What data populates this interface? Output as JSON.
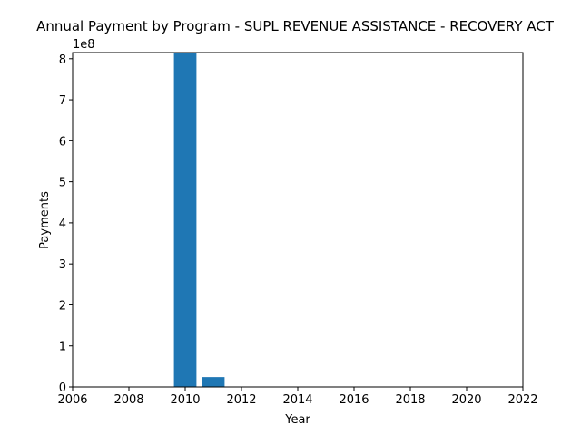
{
  "chart_data": {
    "type": "bar",
    "title": "Annual Payment by Program - SUPL REVENUE ASSISTANCE - RECOVERY ACT",
    "xlabel": "Year",
    "ylabel": "Payments",
    "y_offset_text": "1e8",
    "x": [
      2010,
      2011
    ],
    "values": [
      815000000,
      24000000
    ],
    "bar_width_years": 0.8,
    "xlim": [
      2006,
      2022
    ],
    "ylim": [
      0,
      815000000
    ],
    "x_ticks": [
      2006,
      2008,
      2010,
      2012,
      2014,
      2016,
      2018,
      2020,
      2022
    ],
    "x_tick_labels": [
      "2006",
      "2008",
      "2010",
      "2012",
      "2014",
      "2016",
      "2018",
      "2020",
      "2022"
    ],
    "y_ticks": [
      0,
      100000000,
      200000000,
      300000000,
      400000000,
      500000000,
      600000000,
      700000000,
      800000000
    ],
    "y_tick_labels": [
      "0",
      "1",
      "2",
      "3",
      "4",
      "5",
      "6",
      "7",
      "8"
    ],
    "bar_color": "#1f77b4",
    "grid": false,
    "legend": "none"
  }
}
